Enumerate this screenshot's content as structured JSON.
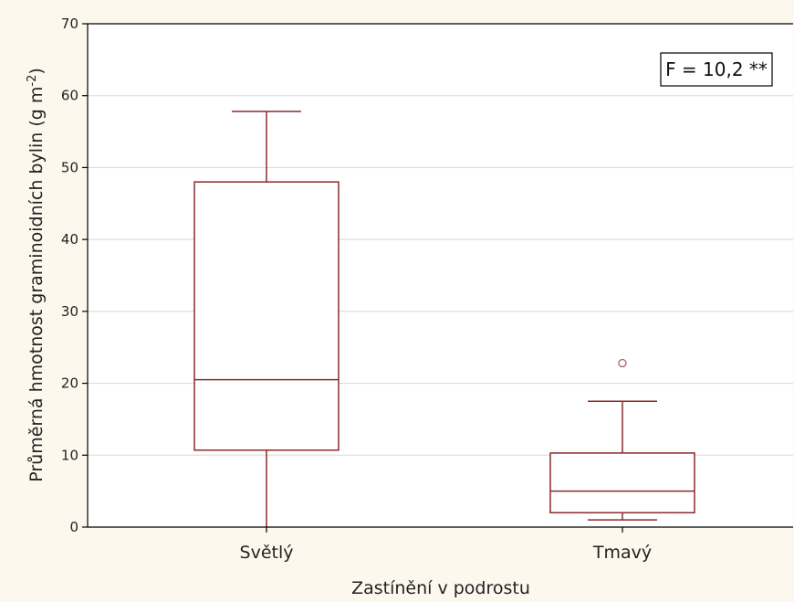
{
  "chart_data": {
    "type": "box",
    "xlabel": "Zastínění v podrostu",
    "ylabel": "Průměrná hmotnost graminoidních bylin (g m",
    "ylabel_sup": "-2",
    "ylabel_end": ")",
    "ylim": [
      0,
      70
    ],
    "yticks": [
      "0",
      "10",
      "20",
      "30",
      "40",
      "50",
      "60",
      "70"
    ],
    "grid": "horizontal",
    "annotation": "F = 10,2 **",
    "annotation_position": "top-right",
    "box_color": "#8b2a2a",
    "grid_color": "#d8d8d8",
    "categories": [
      "Světlý",
      "Tmavý"
    ],
    "boxes": [
      {
        "category": "Světlý",
        "whisker_low": 0,
        "q1": 10.7,
        "median": 20.5,
        "q3": 48.0,
        "whisker_high": 57.8,
        "outliers": []
      },
      {
        "category": "Tmavý",
        "whisker_low": 1.0,
        "q1": 2.0,
        "median": 5.0,
        "q3": 10.3,
        "whisker_high": 17.5,
        "outliers": [
          22.8
        ]
      }
    ]
  }
}
